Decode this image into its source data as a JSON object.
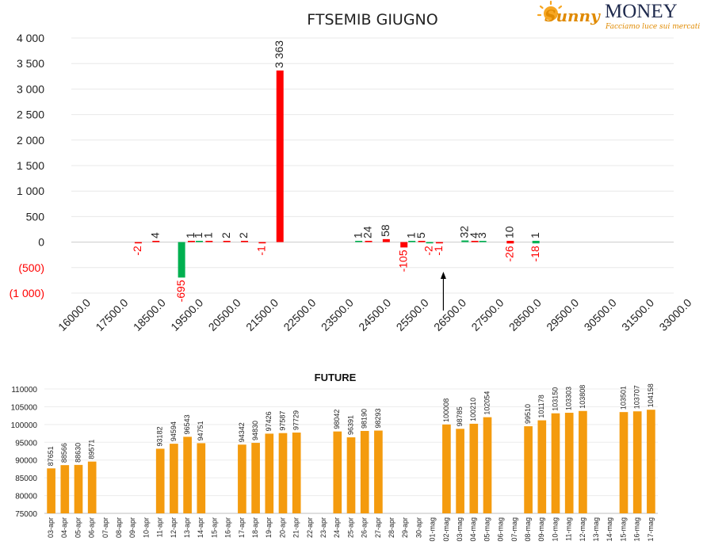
{
  "logo": {
    "script": "Sunny",
    "word": "MONEY",
    "tagline": "Facciamo luce sui mercati"
  },
  "chart_data": [
    {
      "type": "bar",
      "title": "FTSEMIB GIUGNO",
      "xlabel": "",
      "ylabel": "",
      "ylim": [
        -1000,
        4000
      ],
      "y_ticks": [
        4000,
        3500,
        3000,
        2500,
        2000,
        1500,
        1000,
        500,
        0,
        -500,
        -1000
      ],
      "y_tick_labels": [
        "4 000",
        "3 500",
        "3 000",
        "2 500",
        "2 000",
        "1 500",
        "1 000",
        "500",
        "0",
        "(500)",
        "(1 000)"
      ],
      "x_tick_labels": [
        "16000.0",
        "17500.0",
        "18500.0",
        "19500.0",
        "20500.0",
        "21500.0",
        "22500.0",
        "23500.0",
        "24500.0",
        "25500.0",
        "26500.0",
        "27500.0",
        "28500.0",
        "29500.0",
        "30500.0",
        "31500.0",
        "33000.0"
      ],
      "series": [
        {
          "color": "#ff0000",
          "points": [
            {
              "strike": 18000,
              "value": -2
            },
            {
              "strike": 18500,
              "value": 4
            },
            {
              "strike": 19500,
              "value": 1
            },
            {
              "strike": 20000,
              "value": 1
            },
            {
              "strike": 20500,
              "value": 2
            },
            {
              "strike": 21000,
              "value": 2
            },
            {
              "strike": 21500,
              "value": -1
            },
            {
              "strike": 22000,
              "value": 3363
            },
            {
              "strike": 24500,
              "value": 24
            },
            {
              "strike": 25000,
              "value": 58
            },
            {
              "strike": 25500,
              "value": -105
            },
            {
              "strike": 26000,
              "value": 5
            },
            {
              "strike": 26500,
              "value": -1
            },
            {
              "strike": 27500,
              "value": 4
            },
            {
              "strike": 28500,
              "value": 10
            },
            {
              "strike": 28500,
              "value": -26
            }
          ]
        },
        {
          "color": "#00b050",
          "points": [
            {
              "strike": 19000,
              "value": -695
            },
            {
              "strike": 19500,
              "value": 1
            },
            {
              "strike": 24000,
              "value": 1
            },
            {
              "strike": 25500,
              "value": 1
            },
            {
              "strike": 26000,
              "value": -2
            },
            {
              "strike": 27000,
              "value": 32
            },
            {
              "strike": 27500,
              "value": 3
            },
            {
              "strike": 29000,
              "value": 1
            },
            {
              "strike": 29000,
              "value": -18
            }
          ]
        }
      ],
      "annotation": {
        "type": "arrow",
        "strike": 26500
      }
    },
    {
      "type": "bar",
      "title": "FUTURE",
      "xlabel": "",
      "ylabel": "",
      "ylim": [
        75000,
        110000
      ],
      "y_ticks": [
        110000,
        105000,
        100000,
        95000,
        90000,
        85000,
        80000,
        75000
      ],
      "color": "#f49b0e",
      "categories": [
        "03-apr",
        "04-apr",
        "05-apr",
        "06-apr",
        "07-apr",
        "08-apr",
        "09-apr",
        "10-apr",
        "11-apr",
        "12-apr",
        "13-apr",
        "14-apr",
        "15-apr",
        "16-apr",
        "17-apr",
        "18-apr",
        "19-apr",
        "20-apr",
        "21-apr",
        "22-apr",
        "23-apr",
        "24-apr",
        "25-apr",
        "26-apr",
        "27-apr",
        "28-apr",
        "29-apr",
        "30-apr",
        "01-mag",
        "02-mag",
        "03-mag",
        "04-mag",
        "05-mag",
        "06-mag",
        "07-mag",
        "08-mag",
        "09-mag",
        "10-mag",
        "11-mag",
        "12-mag",
        "13-mag",
        "14-mag",
        "15-mag",
        "16-mag",
        "17-mag"
      ],
      "values": [
        87651,
        88566,
        88630,
        89571,
        null,
        null,
        null,
        null,
        93182,
        94594,
        96543,
        94751,
        null,
        null,
        94342,
        94830,
        97426,
        97587,
        97729,
        null,
        null,
        98042,
        96391,
        98190,
        98293,
        null,
        null,
        null,
        null,
        100008,
        98785,
        100210,
        102054,
        null,
        null,
        99510,
        101178,
        103150,
        103303,
        103808,
        null,
        null,
        103501,
        103707,
        104158
      ]
    }
  ]
}
